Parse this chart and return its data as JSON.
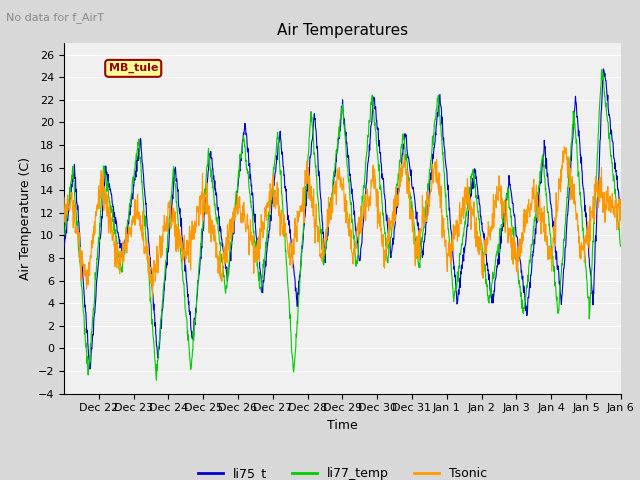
{
  "title": "Air Temperatures",
  "no_data_label": "No data for f_AirT",
  "mb_tule_label": "MB_tule",
  "xlabel": "Time",
  "ylabel": "Air Temperature (C)",
  "ylim": [
    -4,
    27
  ],
  "yticks": [
    -4,
    -2,
    0,
    2,
    4,
    6,
    8,
    10,
    12,
    14,
    16,
    18,
    20,
    22,
    24,
    26
  ],
  "line_colors": {
    "li75_t": "#0000cc",
    "li77_temp": "#00cc00",
    "Tsonic": "#ff9900"
  },
  "legend_labels": [
    "li75_t",
    "li77_temp",
    "Tsonic"
  ],
  "mb_tule_box_color": "#ffff99",
  "mb_tule_border_color": "#990000",
  "mb_tule_text_color": "#990000",
  "background_color": "#d8d8d8",
  "plot_bg_color": "#f0f0f0",
  "grid_color": "#ffffff",
  "title_fontsize": 11,
  "axis_fontsize": 9,
  "tick_fontsize": 8,
  "n_points": 1500,
  "x_labels": [
    "Dec 22",
    "Dec 23",
    "Dec 24",
    "Dec 25",
    "Dec 26",
    "Dec 27",
    "Dec 28",
    "Dec 29",
    "Dec 30",
    "Dec 31",
    "Jan 1",
    "Jan 2",
    "Jan 3",
    "Jan 4",
    "Jan 5",
    "Jan 6"
  ]
}
